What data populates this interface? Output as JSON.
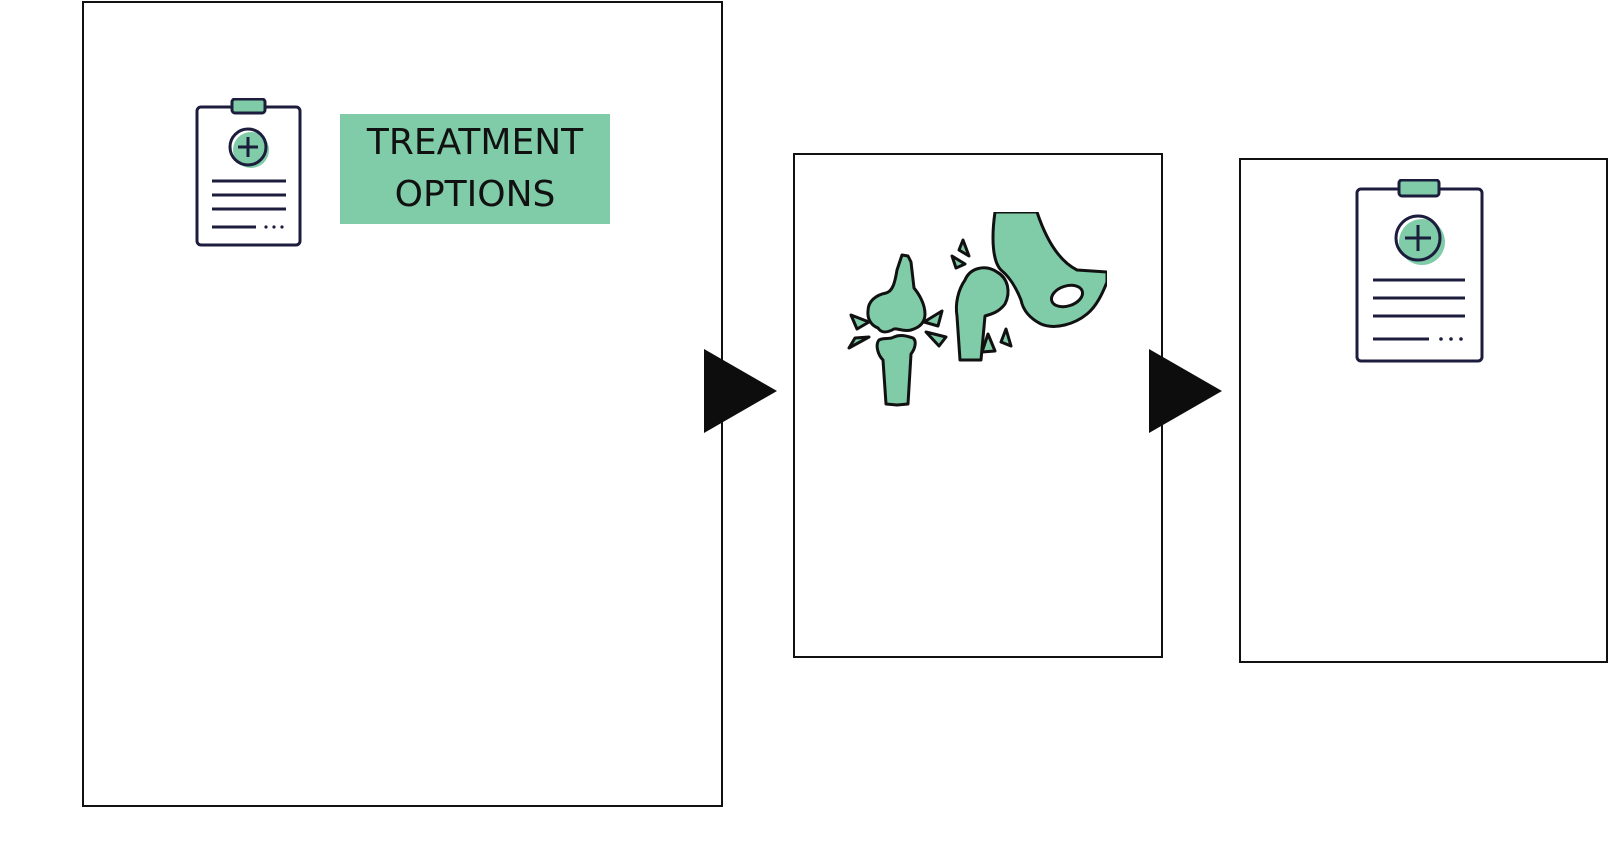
{
  "diagram": {
    "title_box": {
      "line1": "TREATMENT",
      "line2": "OPTIONS",
      "fill": "#81cca8"
    },
    "colors": {
      "accent": "#81cca8",
      "ink": "#1c1c3c",
      "border": "#111111",
      "arrow": "#0d0d0d"
    },
    "icons": {
      "panel1": "medical-clipboard-icon",
      "panel2": "injured-joints-icon",
      "panel3": "medical-clipboard-icon"
    }
  }
}
